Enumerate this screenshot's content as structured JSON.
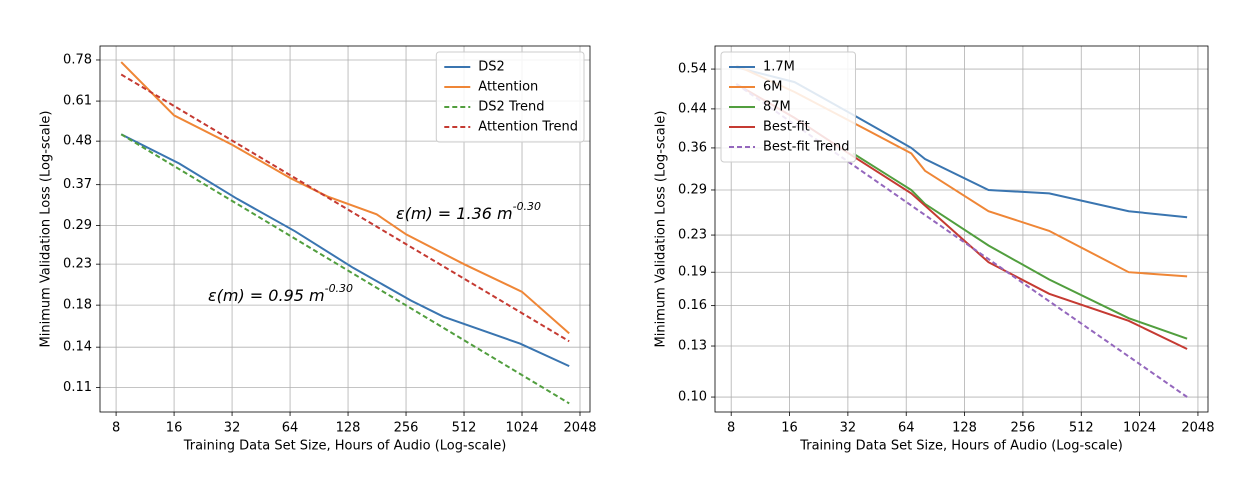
{
  "chart_data": [
    {
      "type": "line",
      "xscale": "log",
      "yscale": "log",
      "grid": true,
      "legend": "upper right",
      "xlabel": "Training Data Set Size, Hours of Audio (Log-scale)",
      "ylabel": "Minimum Validation Loss (Log-scale)",
      "xlim": [
        6.6,
        2308
      ],
      "xticks": [
        8,
        16,
        32,
        64,
        128,
        256,
        512,
        1024,
        2048
      ],
      "ylim": [
        0.095,
        0.848
      ],
      "yticks": [
        0.78,
        0.61,
        0.48,
        0.37,
        0.29,
        0.23,
        0.18,
        0.14,
        0.11
      ],
      "series": [
        {
          "name": "DS2",
          "color": "#3a75b0",
          "linestyle": "solid",
          "x": [
            8.5,
            17,
            34,
            68,
            136,
            272,
            400,
            1000,
            1800
          ],
          "values": [
            0.5,
            0.42,
            0.34,
            0.28,
            0.225,
            0.185,
            0.168,
            0.143,
            0.125
          ]
        },
        {
          "name": "Attention",
          "color": "#ef8636",
          "linestyle": "solid",
          "x": [
            8.5,
            16,
            32,
            64,
            100,
            180,
            256,
            512,
            1024,
            1800
          ],
          "values": [
            0.77,
            0.56,
            0.47,
            0.385,
            0.345,
            0.31,
            0.275,
            0.23,
            0.195,
            0.152
          ]
        },
        {
          "name": "DS2 Trend",
          "color": "#519e3e",
          "linestyle": "dashed",
          "x": [
            8.5,
            1800
          ],
          "values": [
            0.5,
            0.1
          ]
        },
        {
          "name": "Attention Trend",
          "color": "#c53a32",
          "linestyle": "dashed",
          "x": [
            8.5,
            1800
          ],
          "values": [
            0.715,
            0.145
          ]
        }
      ],
      "annotations": [
        {
          "text": "ε(m) = 1.36 m",
          "sup": "-0.30"
        },
        {
          "text": "ε(m) = 0.95 m",
          "sup": "-0.30"
        }
      ]
    },
    {
      "type": "line",
      "xscale": "log",
      "yscale": "log",
      "grid": true,
      "legend": "upper left",
      "xlabel": "Training Data Set Size, Hours of Audio (Log-scale)",
      "ylabel": "Minimum Validation Loss (Log-scale)",
      "xlim": [
        6.6,
        2308
      ],
      "xticks": [
        8,
        16,
        32,
        64,
        128,
        256,
        512,
        1024,
        2048
      ],
      "ylim": [
        0.0926,
        0.608
      ],
      "yticks": [
        0.54,
        0.44,
        0.36,
        0.29,
        0.23,
        0.19,
        0.16,
        0.13,
        {
          "value": 0.1,
          "label": "0.10"
        }
      ],
      "series": [
        {
          "name": "1.7M",
          "color": "#3a75b0",
          "linestyle": "solid",
          "x": [
            8.5,
            17,
            34,
            68,
            80,
            170,
            350,
            900,
            1800
          ],
          "values": [
            0.545,
            0.505,
            0.427,
            0.36,
            0.34,
            0.29,
            0.285,
            0.26,
            0.252
          ]
        },
        {
          "name": "6M",
          "color": "#ef8636",
          "linestyle": "solid",
          "x": [
            8.5,
            17,
            34,
            68,
            80,
            170,
            350,
            900,
            1800
          ],
          "values": [
            0.55,
            0.48,
            0.41,
            0.35,
            0.32,
            0.26,
            0.235,
            0.19,
            0.186
          ]
        },
        {
          "name": "87M",
          "color": "#519e3e",
          "linestyle": "solid",
          "x": [
            34,
            68,
            80,
            170,
            350,
            900,
            1800
          ],
          "values": [
            0.35,
            0.29,
            0.27,
            0.218,
            0.183,
            0.15,
            0.135
          ]
        },
        {
          "name": "Best-fit",
          "color": "#c53a32",
          "linestyle": "solid",
          "x": [
            8.5,
            17,
            34,
            68,
            170,
            350,
            900,
            1800
          ],
          "values": [
            0.5,
            0.42,
            0.345,
            0.285,
            0.2,
            0.17,
            0.148,
            0.128
          ]
        },
        {
          "name": "Best-fit Trend",
          "color": "#9467bd",
          "linestyle": "dashed",
          "x": [
            8.5,
            1800
          ],
          "values": [
            0.5,
            0.1
          ]
        }
      ]
    }
  ]
}
